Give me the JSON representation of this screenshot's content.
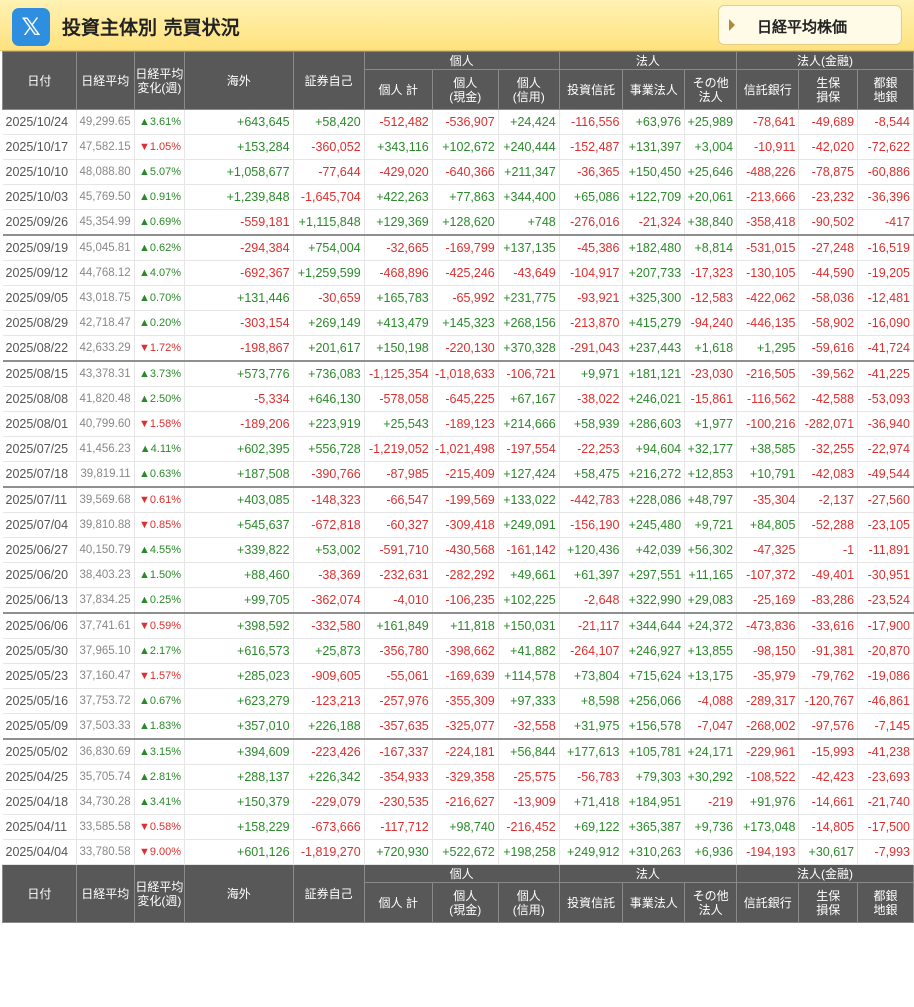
{
  "header": {
    "logo_glyph": "𝕏",
    "title": "投資主体別 売買状況",
    "nikkei_button": "日経平均株価"
  },
  "table": {
    "groups": {
      "individual": "個人",
      "corporate": "法人",
      "financial": "法人(金融)"
    },
    "columns": [
      "日付",
      "日経平均",
      "日経平均\n変化(週)",
      "海外",
      "証券自己",
      "個人 計",
      "個人\n(現金)",
      "個人\n(信用)",
      "投資信託",
      "事業法人",
      "その他\n法人",
      "信託銀行",
      "生保\n損保",
      "都銀\n地銀"
    ],
    "rows": [
      [
        "2025/10/24",
        "49,299.65",
        "▲3.61%",
        "+643,645",
        "+58,420",
        "-512,482",
        "-536,907",
        "+24,424",
        "-116,556",
        "+63,976",
        "+25,989",
        "-78,641",
        "-49,689",
        "-8,544"
      ],
      [
        "2025/10/17",
        "47,582.15",
        "▼1.05%",
        "+153,284",
        "-360,052",
        "+343,116",
        "+102,672",
        "+240,444",
        "-152,487",
        "+131,397",
        "+3,004",
        "-10,911",
        "-42,020",
        "-72,622"
      ],
      [
        "2025/10/10",
        "48,088.80",
        "▲5.07%",
        "+1,058,677",
        "-77,644",
        "-429,020",
        "-640,366",
        "+211,347",
        "-36,365",
        "+150,450",
        "+25,646",
        "-488,226",
        "-78,875",
        "-60,886"
      ],
      [
        "2025/10/03",
        "45,769.50",
        "▲0.91%",
        "+1,239,848",
        "-1,645,704",
        "+422,263",
        "+77,863",
        "+344,400",
        "+65,086",
        "+122,709",
        "+20,061",
        "-213,666",
        "-23,232",
        "-36,396"
      ],
      [
        "2025/09/26",
        "45,354.99",
        "▲0.69%",
        "-559,181",
        "+1,115,848",
        "+129,369",
        "+128,620",
        "+748",
        "-276,016",
        "-21,324",
        "+38,840",
        "-358,418",
        "-90,502",
        "-417"
      ],
      [
        "2025/09/19",
        "45,045.81",
        "▲0.62%",
        "-294,384",
        "+754,004",
        "-32,665",
        "-169,799",
        "+137,135",
        "-45,386",
        "+182,480",
        "+8,814",
        "-531,015",
        "-27,248",
        "-16,519"
      ],
      [
        "2025/09/12",
        "44,768.12",
        "▲4.07%",
        "-692,367",
        "+1,259,599",
        "-468,896",
        "-425,246",
        "-43,649",
        "-104,917",
        "+207,733",
        "-17,323",
        "-130,105",
        "-44,590",
        "-19,205"
      ],
      [
        "2025/09/05",
        "43,018.75",
        "▲0.70%",
        "+131,446",
        "-30,659",
        "+165,783",
        "-65,992",
        "+231,775",
        "-93,921",
        "+325,300",
        "-12,583",
        "-422,062",
        "-58,036",
        "-12,481"
      ],
      [
        "2025/08/29",
        "42,718.47",
        "▲0.20%",
        "-303,154",
        "+269,149",
        "+413,479",
        "+145,323",
        "+268,156",
        "-213,870",
        "+415,279",
        "-94,240",
        "-446,135",
        "-58,902",
        "-16,090"
      ],
      [
        "2025/08/22",
        "42,633.29",
        "▼1.72%",
        "-198,867",
        "+201,617",
        "+150,198",
        "-220,130",
        "+370,328",
        "-291,043",
        "+237,443",
        "+1,618",
        "+1,295",
        "-59,616",
        "-41,724"
      ],
      [
        "2025/08/15",
        "43,378.31",
        "▲3.73%",
        "+573,776",
        "+736,083",
        "-1,125,354",
        "-1,018,633",
        "-106,721",
        "+9,971",
        "+181,121",
        "-23,030",
        "-216,505",
        "-39,562",
        "-41,225"
      ],
      [
        "2025/08/08",
        "41,820.48",
        "▲2.50%",
        "-5,334",
        "+646,130",
        "-578,058",
        "-645,225",
        "+67,167",
        "-38,022",
        "+246,021",
        "-15,861",
        "-116,562",
        "-42,588",
        "-53,093"
      ],
      [
        "2025/08/01",
        "40,799.60",
        "▼1.58%",
        "-189,206",
        "+223,919",
        "+25,543",
        "-189,123",
        "+214,666",
        "+58,939",
        "+286,603",
        "+1,977",
        "-100,216",
        "-282,071",
        "-36,940"
      ],
      [
        "2025/07/25",
        "41,456.23",
        "▲4.11%",
        "+602,395",
        "+556,728",
        "-1,219,052",
        "-1,021,498",
        "-197,554",
        "-22,253",
        "+94,604",
        "+32,177",
        "+38,585",
        "-32,255",
        "-22,974"
      ],
      [
        "2025/07/18",
        "39,819.11",
        "▲0.63%",
        "+187,508",
        "-390,766",
        "-87,985",
        "-215,409",
        "+127,424",
        "+58,475",
        "+216,272",
        "+12,853",
        "+10,791",
        "-42,083",
        "-49,544"
      ],
      [
        "2025/07/11",
        "39,569.68",
        "▼0.61%",
        "+403,085",
        "-148,323",
        "-66,547",
        "-199,569",
        "+133,022",
        "-442,783",
        "+228,086",
        "+48,797",
        "-35,304",
        "-2,137",
        "-27,560"
      ],
      [
        "2025/07/04",
        "39,810.88",
        "▼0.85%",
        "+545,637",
        "-672,818",
        "-60,327",
        "-309,418",
        "+249,091",
        "-156,190",
        "+245,480",
        "+9,721",
        "+84,805",
        "-52,288",
        "-23,105"
      ],
      [
        "2025/06/27",
        "40,150.79",
        "▲4.55%",
        "+339,822",
        "+53,002",
        "-591,710",
        "-430,568",
        "-161,142",
        "+120,436",
        "+42,039",
        "+56,302",
        "-47,325",
        "-1",
        "-11,891"
      ],
      [
        "2025/06/20",
        "38,403.23",
        "▲1.50%",
        "+88,460",
        "-38,369",
        "-232,631",
        "-282,292",
        "+49,661",
        "+61,397",
        "+297,551",
        "+11,165",
        "-107,372",
        "-49,401",
        "-30,951"
      ],
      [
        "2025/06/13",
        "37,834.25",
        "▲0.25%",
        "+99,705",
        "-362,074",
        "-4,010",
        "-106,235",
        "+102,225",
        "-2,648",
        "+322,990",
        "+29,083",
        "-25,169",
        "-83,286",
        "-23,524"
      ],
      [
        "2025/06/06",
        "37,741.61",
        "▼0.59%",
        "+398,592",
        "-332,580",
        "+161,849",
        "+11,818",
        "+150,031",
        "-21,117",
        "+344,644",
        "+24,372",
        "-473,836",
        "-33,616",
        "-17,900"
      ],
      [
        "2025/05/30",
        "37,965.10",
        "▲2.17%",
        "+616,573",
        "+25,873",
        "-356,780",
        "-398,662",
        "+41,882",
        "-264,107",
        "+246,927",
        "+13,855",
        "-98,150",
        "-91,381",
        "-20,870"
      ],
      [
        "2025/05/23",
        "37,160.47",
        "▼1.57%",
        "+285,023",
        "-909,605",
        "-55,061",
        "-169,639",
        "+114,578",
        "+73,804",
        "+715,624",
        "+13,175",
        "-35,979",
        "-79,762",
        "-19,086"
      ],
      [
        "2025/05/16",
        "37,753.72",
        "▲0.67%",
        "+623,279",
        "-123,213",
        "-257,976",
        "-355,309",
        "+97,333",
        "+8,598",
        "+256,066",
        "-4,088",
        "-289,317",
        "-120,767",
        "-46,861"
      ],
      [
        "2025/05/09",
        "37,503.33",
        "▲1.83%",
        "+357,010",
        "+226,188",
        "-357,635",
        "-325,077",
        "-32,558",
        "+31,975",
        "+156,578",
        "-7,047",
        "-268,002",
        "-97,576",
        "-7,145"
      ],
      [
        "2025/05/02",
        "36,830.69",
        "▲3.15%",
        "+394,609",
        "-223,426",
        "-167,337",
        "-224,181",
        "+56,844",
        "+177,613",
        "+105,781",
        "+24,171",
        "-229,961",
        "-15,993",
        "-41,238"
      ],
      [
        "2025/04/25",
        "35,705.74",
        "▲2.81%",
        "+288,137",
        "+226,342",
        "-354,933",
        "-329,358",
        "-25,575",
        "-56,783",
        "+79,303",
        "+30,292",
        "-108,522",
        "-42,423",
        "-23,693"
      ],
      [
        "2025/04/18",
        "34,730.28",
        "▲3.41%",
        "+150,379",
        "-229,079",
        "-230,535",
        "-216,627",
        "-13,909",
        "+71,418",
        "+184,951",
        "-219",
        "+91,976",
        "-14,661",
        "-21,740"
      ],
      [
        "2025/04/11",
        "33,585.58",
        "▼0.58%",
        "+158,229",
        "-673,666",
        "-117,712",
        "+98,740",
        "-216,452",
        "+69,122",
        "+365,387",
        "+9,736",
        "+173,048",
        "-14,805",
        "-17,500"
      ],
      [
        "2025/04/04",
        "33,780.58",
        "▼9.00%",
        "+601,126",
        "-1,819,270",
        "+720,930",
        "+522,672",
        "+198,258",
        "+249,912",
        "+310,263",
        "+6,936",
        "-194,193",
        "+30,617",
        "-7,993"
      ]
    ]
  },
  "colors": {
    "positive": "#2a8a2a",
    "negative": "#dd2f2f",
    "header_bg": "#585858",
    "title_bar": "#ffe27e"
  }
}
